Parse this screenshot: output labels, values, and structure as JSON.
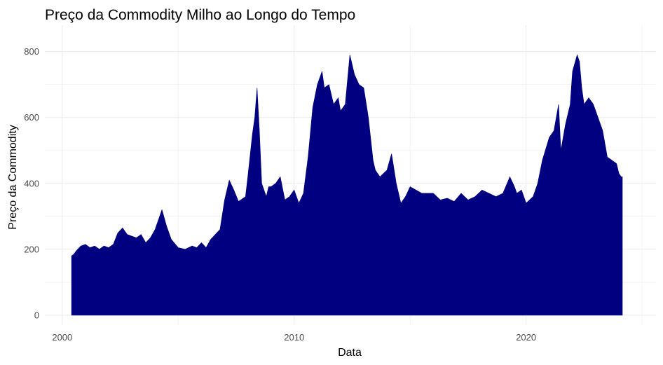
{
  "chart_data": {
    "type": "area",
    "title": "Preço da Commodity Milho ao Longo do Tempo",
    "xlabel": "Data",
    "ylabel": "Preço da Commodity",
    "x_ticks": [
      {
        "value": 2000,
        "label": "2000"
      },
      {
        "value": 2010,
        "label": "2010"
      },
      {
        "value": 2020,
        "label": "2020"
      }
    ],
    "y_ticks": [
      {
        "value": 0,
        "label": "0"
      },
      {
        "value": 200,
        "label": "200"
      },
      {
        "value": 400,
        "label": "400"
      },
      {
        "value": 600,
        "label": "600"
      },
      {
        "value": 800,
        "label": "800"
      }
    ],
    "xlim": [
      1999.25,
      2025.6
    ],
    "ylim": [
      -30,
      880
    ],
    "grid": true,
    "fill_color": "#000080",
    "series": [
      {
        "x": [
          2000.4,
          2000.5,
          2000.6,
          2000.8,
          2001.0,
          2001.2,
          2001.4,
          2001.6,
          2001.8,
          2002.0,
          2002.2,
          2002.4,
          2002.6,
          2002.8,
          2003.0,
          2003.2,
          2003.4,
          2003.6,
          2003.8,
          2004.0,
          2004.2,
          2004.3,
          2004.5,
          2004.7,
          2005.0,
          2005.3,
          2005.6,
          2005.8,
          2006.0,
          2006.2,
          2006.4,
          2006.6,
          2006.8,
          2007.0,
          2007.2,
          2007.4,
          2007.6,
          2007.9,
          2008.0,
          2008.2,
          2008.3,
          2008.4,
          2008.5,
          2008.6,
          2008.8,
          2008.9,
          2009.0,
          2009.2,
          2009.4,
          2009.6,
          2009.8,
          2010.0,
          2010.2,
          2010.4,
          2010.6,
          2010.8,
          2011.0,
          2011.2,
          2011.3,
          2011.5,
          2011.7,
          2011.9,
          2012.0,
          2012.2,
          2012.4,
          2012.5,
          2012.6,
          2012.8,
          2013.0,
          2013.2,
          2013.4,
          2013.5,
          2013.7,
          2014.0,
          2014.2,
          2014.4,
          2014.6,
          2014.8,
          2015.0,
          2015.5,
          2016.0,
          2016.3,
          2016.6,
          2016.9,
          2017.2,
          2017.5,
          2017.8,
          2018.1,
          2018.4,
          2018.7,
          2019.0,
          2019.3,
          2019.5,
          2019.6,
          2019.8,
          2020.0,
          2020.3,
          2020.5,
          2020.7,
          2021.0,
          2021.2,
          2021.4,
          2021.5,
          2021.7,
          2021.9,
          2022.0,
          2022.2,
          2022.3,
          2022.4,
          2022.5,
          2022.7,
          2022.9,
          2023.1,
          2023.3,
          2023.5,
          2023.7,
          2023.9,
          2024.0,
          2024.1,
          2024.15
        ],
        "y": [
          180,
          185,
          195,
          210,
          215,
          205,
          210,
          200,
          210,
          205,
          215,
          250,
          265,
          245,
          240,
          235,
          245,
          220,
          235,
          260,
          300,
          320,
          270,
          230,
          205,
          200,
          210,
          205,
          220,
          205,
          230,
          245,
          260,
          350,
          410,
          380,
          345,
          360,
          420,
          550,
          600,
          690,
          560,
          400,
          360,
          390,
          390,
          400,
          420,
          350,
          360,
          380,
          340,
          370,
          480,
          630,
          700,
          740,
          690,
          700,
          640,
          660,
          620,
          640,
          790,
          760,
          730,
          700,
          690,
          600,
          470,
          440,
          420,
          440,
          490,
          400,
          340,
          360,
          390,
          370,
          370,
          350,
          355,
          345,
          370,
          350,
          360,
          380,
          370,
          360,
          370,
          420,
          390,
          370,
          380,
          340,
          360,
          400,
          470,
          540,
          560,
          640,
          500,
          580,
          640,
          740,
          790,
          770,
          690,
          640,
          660,
          640,
          600,
          560,
          480,
          470,
          460,
          430,
          420,
          420
        ]
      }
    ]
  }
}
